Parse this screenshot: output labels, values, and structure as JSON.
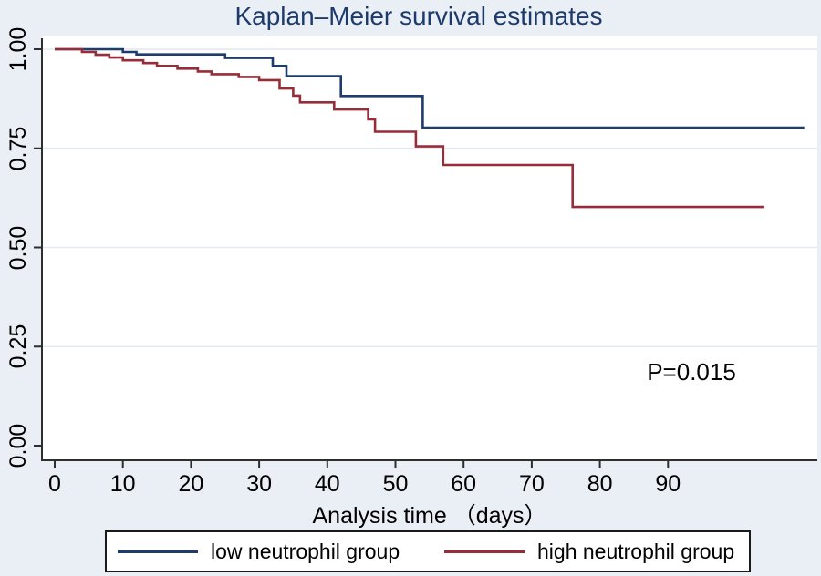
{
  "title": "Kaplan–Meier survival estimates",
  "colors": {
    "background": "#e9eff4",
    "plot_background": "#ffffff",
    "grid": "#e3e9f0",
    "axis": "#2e2e2e",
    "title_text": "#1d3a6d",
    "navy": "#1e3c6e",
    "maroon": "#962d38",
    "text": "#000000"
  },
  "x_axis": {
    "label": "Analysis time （days）",
    "ticks": [
      0,
      10,
      20,
      30,
      40,
      50,
      60,
      70,
      80,
      90
    ]
  },
  "y_axis": {
    "ticks": [
      {
        "label": "1.00",
        "value": 1.0
      },
      {
        "label": "0.75",
        "value": 0.75
      },
      {
        "label": "0.50",
        "value": 0.5
      },
      {
        "label": "0.25",
        "value": 0.25
      },
      {
        "label": "0.00",
        "value": 0.0
      }
    ]
  },
  "annotation": {
    "text": "P=0.015"
  },
  "legend": {
    "items": [
      {
        "label": "low neutrophil group",
        "color_key": "navy"
      },
      {
        "label": "high neutrophil group",
        "color_key": "maroon"
      }
    ]
  },
  "chart_data": {
    "type": "line",
    "subtype": "kaplan-meier-step",
    "title": "Kaplan–Meier survival estimates",
    "xlabel": "Analysis time （days）",
    "ylabel": "",
    "xlim": [
      0,
      112
    ],
    "ylim": [
      0.0,
      1.0
    ],
    "grid": "horizontal",
    "legend_position": "bottom",
    "annotations": [
      {
        "text": "P=0.015",
        "x": 93,
        "y": 0.185
      }
    ],
    "series": [
      {
        "name": "low neutrophil group",
        "color_key": "navy",
        "end_x": 110,
        "steps": [
          [
            0,
            1.0
          ],
          [
            10,
            0.993
          ],
          [
            12,
            0.987
          ],
          [
            25,
            0.978
          ],
          [
            32,
            0.958
          ],
          [
            34,
            0.932
          ],
          [
            42,
            0.882
          ],
          [
            54,
            0.802
          ]
        ]
      },
      {
        "name": "high neutrophil group",
        "color_key": "maroon",
        "end_x": 104,
        "steps": [
          [
            0,
            1.0
          ],
          [
            4,
            0.993
          ],
          [
            6,
            0.986
          ],
          [
            8,
            0.979
          ],
          [
            10,
            0.972
          ],
          [
            13,
            0.965
          ],
          [
            15,
            0.958
          ],
          [
            18,
            0.951
          ],
          [
            21,
            0.944
          ],
          [
            23,
            0.937
          ],
          [
            27,
            0.93
          ],
          [
            30,
            0.922
          ],
          [
            33,
            0.901
          ],
          [
            35,
            0.883
          ],
          [
            36,
            0.866
          ],
          [
            41,
            0.848
          ],
          [
            46,
            0.823
          ],
          [
            47,
            0.792
          ],
          [
            53,
            0.755
          ],
          [
            57,
            0.708
          ],
          [
            76,
            0.602
          ]
        ]
      }
    ]
  }
}
